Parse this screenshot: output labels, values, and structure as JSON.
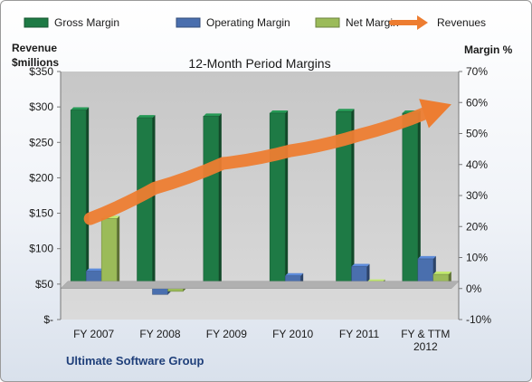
{
  "chart_data": {
    "type": "bar",
    "title": "12-Month Period Margins",
    "categories": [
      [
        "FY 2007"
      ],
      [
        "FY 2008"
      ],
      [
        "FY 2009"
      ],
      [
        "FY 2010"
      ],
      [
        "FY 2011"
      ],
      [
        "FY & TTM",
        "2012"
      ]
    ],
    "series": [
      {
        "name": "Gross Margin",
        "axis": "right",
        "unit": "%",
        "color": "#1e7a45",
        "values": [
          57,
          54.5,
          55,
          56,
          56.5,
          56
        ]
      },
      {
        "name": "Operating Margin",
        "axis": "right",
        "unit": "%",
        "color": "#4a6fae",
        "values": [
          5,
          -2.5,
          0,
          3.5,
          6.5,
          9
        ]
      },
      {
        "name": "Net Margin",
        "axis": "right",
        "unit": "%",
        "color": "#9bbb59",
        "values": [
          22,
          -1.5,
          -0.5,
          0.5,
          1.5,
          4
        ]
      },
      {
        "name": "Revenues",
        "axis": "left",
        "type": "arrow",
        "unit": "$millions",
        "color": "#ed7d31",
        "values": [
          150,
          193,
          228,
          246,
          268,
          300
        ]
      }
    ],
    "y_left": {
      "label": [
        "Revenue",
        "$millions"
      ],
      "ylim": [
        0,
        350
      ],
      "ticks": [
        "$-",
        "$50",
        "$100",
        "$150",
        "$200",
        "$250",
        "$300",
        "$350"
      ]
    },
    "y_right": {
      "label": "Margin %",
      "ylim": [
        -10,
        70
      ],
      "ticks": [
        "-10%",
        "0%",
        "10%",
        "20%",
        "30%",
        "40%",
        "50%",
        "60%",
        "70%"
      ]
    },
    "grid": false,
    "legend": "top"
  },
  "caption": "Ultimate Software Group"
}
